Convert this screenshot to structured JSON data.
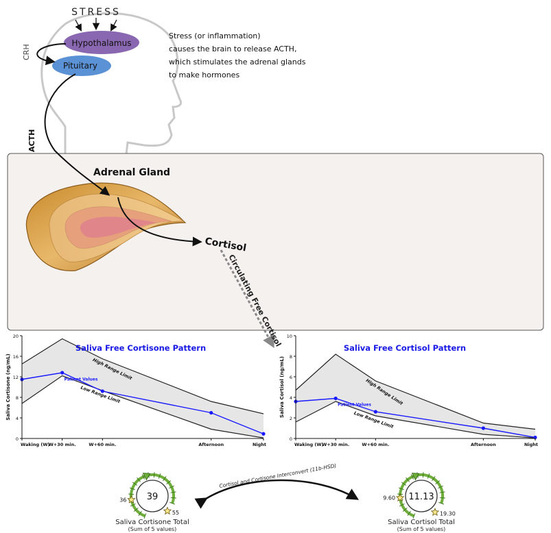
{
  "header": {
    "stress": "STRESS",
    "hypothalamus": "Hypothalamus",
    "pituitary": "Pituitary",
    "crh": "CRH",
    "acth": "ACTH",
    "description": [
      "Stress (or inflammation)",
      "causes the brain to release ACTH,",
      "which stimulates the adrenal glands",
      "to make hormones"
    ]
  },
  "adrenal": {
    "title": "Adrenal Gland",
    "cortisol": "Cortisol",
    "circulating": "Circulating Free Cortisol"
  },
  "colors": {
    "hypothalamus": "#8a67b1",
    "pituitary": "#5b92d6",
    "gland_outer": "#d9a54e",
    "gland_inner": "#e08a84",
    "box_bg": "#f4f1ef",
    "patient": "#1a1aff",
    "title_blue": "#1a1ae6",
    "range_fill": "#e6e6e6",
    "gauge_green": "#6fae3a"
  },
  "chart_data": [
    {
      "type": "line",
      "title": "Saliva Free Cortisone Pattern",
      "ylabel": "Saliva Cortisone (ng/mL)",
      "categories": [
        "Waking (W)",
        "W+30 min.",
        "W+60 min.",
        "Afternoon",
        "Night"
      ],
      "x": [
        0,
        1,
        2,
        4.7,
        6
      ],
      "ylim": [
        0,
        20
      ],
      "yticks": [
        0,
        4,
        8,
        12,
        16,
        20
      ],
      "series": [
        {
          "name": "High Range Limit",
          "values": [
            14.5,
            19.4,
            15.5,
            7.2,
            4.8
          ]
        },
        {
          "name": "Low Range Limit",
          "values": [
            6.8,
            12.2,
            9.3,
            1.8,
            0.1
          ]
        },
        {
          "name": "Patient Values",
          "values": [
            11.5,
            12.8,
            9.2,
            5.0,
            0.9
          ]
        }
      ],
      "annotations": [
        "High Range Limit",
        "Patient Values",
        "Low Range Limit"
      ]
    },
    {
      "type": "line",
      "title": "Saliva Free Cortisol Pattern",
      "ylabel": "Saliva Cortisol (ng/mL)",
      "categories": [
        "Waking (W)",
        "W+30 min.",
        "W+60 min.",
        "Afternoon",
        "Night"
      ],
      "x": [
        0,
        1,
        2,
        4.7,
        6
      ],
      "ylim": [
        0,
        10
      ],
      "yticks": [
        0,
        2,
        4,
        6,
        8,
        10
      ],
      "series": [
        {
          "name": "High Range Limit",
          "values": [
            4.7,
            8.2,
            5.6,
            1.5,
            0.9
          ]
        },
        {
          "name": "Low Range Limit",
          "values": [
            1.6,
            3.6,
            2.2,
            0.4,
            0.05
          ]
        },
        {
          "name": "Patient Values",
          "values": [
            3.6,
            3.9,
            2.6,
            1.0,
            0.1
          ]
        }
      ],
      "annotations": [
        "High Range Limit",
        "Patient Values",
        "Low Range Limit"
      ]
    }
  ],
  "gauges": {
    "interconvert_label": "Cortisol and Cortisone Interconvert (11b-HSD)",
    "cortisone": {
      "value": "39",
      "low": "36",
      "high": "55",
      "title": "Saliva Cortisone Total",
      "subtitle": "(Sum of 5 values)",
      "value_num": 39,
      "low_num": 36,
      "high_num": 55
    },
    "cortisol": {
      "value": "11.13",
      "low": "9.60",
      "high": "19.30",
      "title": "Saliva Cortisol Total",
      "subtitle": "(Sum of 5 values)",
      "value_num": 11.13,
      "low_num": 9.6,
      "high_num": 19.3
    }
  }
}
